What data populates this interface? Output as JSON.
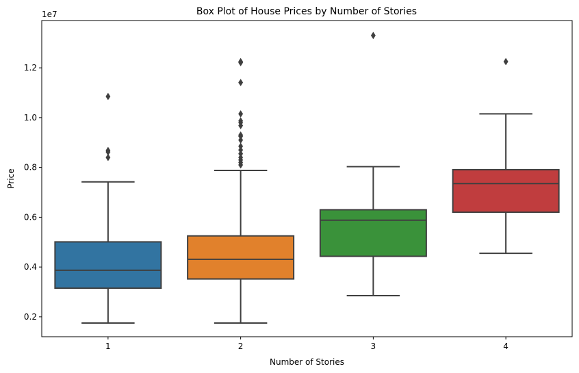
{
  "chart_data": {
    "type": "box",
    "title": "Box Plot of House Prices by Number of Stories",
    "xlabel": "Number of Stories",
    "ylabel": "Price",
    "y_offset_label": "1e7",
    "y_scale": 10000000,
    "ylim": [
      1200000,
      13900000
    ],
    "yticks": [
      {
        "value": 2000000,
        "label": "0.2"
      },
      {
        "value": 4000000,
        "label": "0.4"
      },
      {
        "value": 6000000,
        "label": "0.6"
      },
      {
        "value": 8000000,
        "label": "0.8"
      },
      {
        "value": 10000000,
        "label": "1.0"
      },
      {
        "value": 12000000,
        "label": "1.2"
      }
    ],
    "grid": false,
    "legend": "none",
    "categories": [
      "1",
      "2",
      "3",
      "4"
    ],
    "boxes": [
      {
        "category": "1",
        "color": "#3274a1",
        "whisker_low": 1750000,
        "q1": 3150000,
        "median": 3870000,
        "q3": 5010000,
        "whisker_high": 7420000,
        "outliers": [
          8400000,
          8620000,
          8680000,
          10850000
        ]
      },
      {
        "category": "2",
        "color": "#e1812c",
        "whisker_low": 1750000,
        "q1": 3520000,
        "median": 4310000,
        "q3": 5250000,
        "whisker_high": 7880000,
        "outliers": [
          8100000,
          8200000,
          8300000,
          8400000,
          8550000,
          8700000,
          8850000,
          9100000,
          9250000,
          9300000,
          9680000,
          9800000,
          9870000,
          10150000,
          11410000,
          12210000,
          12250000
        ]
      },
      {
        "category": "3",
        "color": "#3a923a",
        "whisker_low": 2850000,
        "q1": 4430000,
        "median": 5880000,
        "q3": 6300000,
        "whisker_high": 8030000,
        "outliers": [
          13300000
        ]
      },
      {
        "category": "4",
        "color": "#c03d3e",
        "whisker_low": 4550000,
        "q1": 6200000,
        "median": 7350000,
        "q3": 7910000,
        "whisker_high": 10150000,
        "outliers": [
          12250000
        ]
      }
    ],
    "line_color": "#3f3f3f"
  }
}
